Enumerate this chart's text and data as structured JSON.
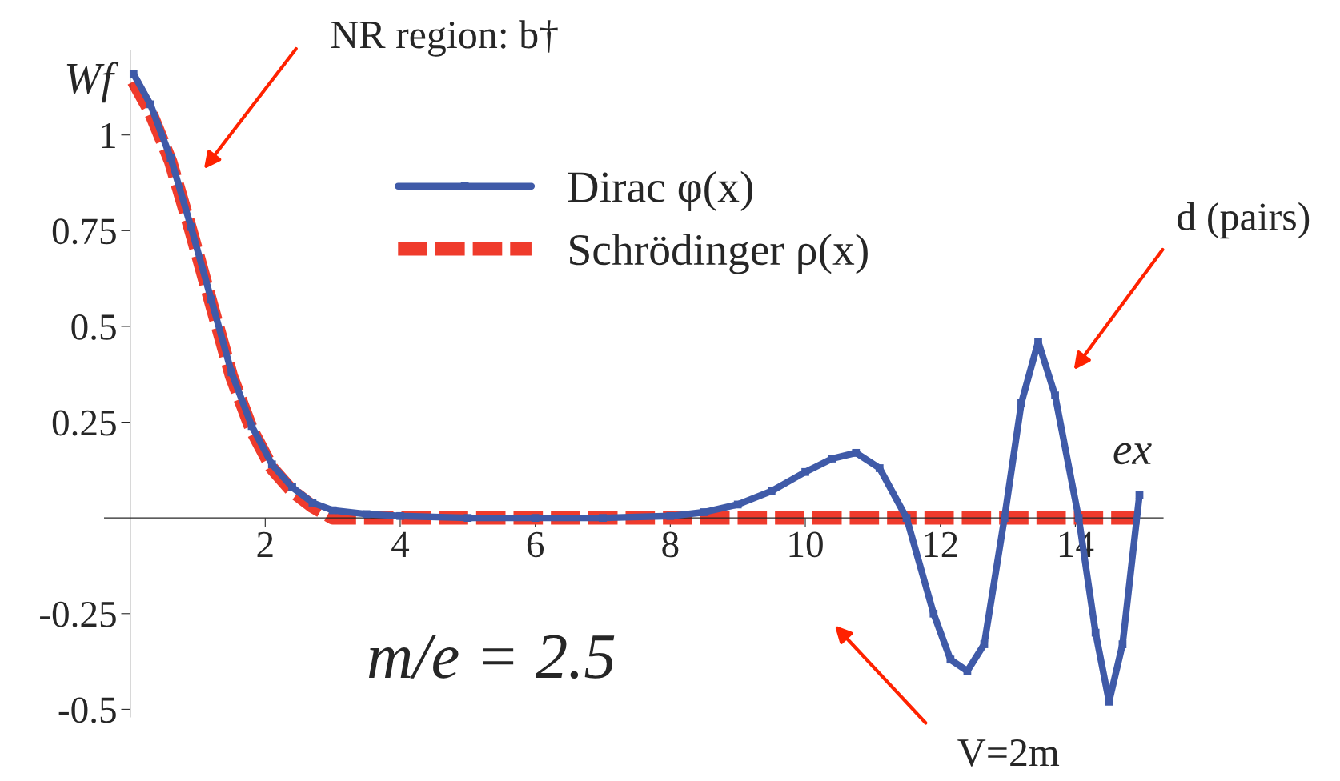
{
  "chart_data": {
    "type": "line",
    "xlabel": "ex",
    "ylabel": "Wf",
    "x": [
      0.05,
      0.3,
      0.6,
      0.9,
      1.2,
      1.5,
      1.8,
      2.1,
      2.4,
      2.7,
      3.0,
      3.5,
      4.0,
      5.0,
      6.0,
      7.0,
      8.0,
      8.5,
      9.0,
      9.5,
      10.0,
      10.4,
      10.75,
      11.1,
      11.5,
      11.9,
      12.15,
      12.4,
      12.65,
      12.95,
      13.2,
      13.45,
      13.7,
      14.05,
      14.3,
      14.5,
      14.7,
      14.95
    ],
    "series": [
      {
        "name": "Dirac φ(x)",
        "color": "#3f5aa8",
        "line_style": "solid",
        "marker": "square",
        "values": [
          1.16,
          1.08,
          0.94,
          0.76,
          0.57,
          0.38,
          0.24,
          0.14,
          0.08,
          0.04,
          0.02,
          0.01,
          0.005,
          0.0,
          0.0,
          0.0,
          0.005,
          0.015,
          0.035,
          0.07,
          0.12,
          0.155,
          0.17,
          0.13,
          0.0,
          -0.25,
          -0.37,
          -0.4,
          -0.33,
          0.0,
          0.3,
          0.46,
          0.32,
          0.0,
          -0.3,
          -0.48,
          -0.33,
          0.06
        ]
      },
      {
        "name": "Schrödinger ρ(x)",
        "color": "#ef3b2c",
        "line_style": "dashed",
        "marker": "none",
        "values": [
          1.14,
          1.06,
          0.93,
          0.75,
          0.56,
          0.37,
          0.23,
          0.13,
          0.07,
          0.03,
          0.0,
          0.0,
          0.0,
          0.0,
          0.0,
          0.0,
          0.0,
          0.0,
          0.0,
          0.0,
          0.0,
          0.0,
          0.0,
          0.0,
          0.0,
          0.0,
          0.0,
          0.0,
          0.0,
          0.0,
          0.0,
          0.0,
          0.0,
          0.0,
          0.0,
          0.0,
          0.0,
          0.0
        ]
      }
    ],
    "xlim": [
      -0.38,
      15.3
    ],
    "ylim": [
      -0.52,
      1.22
    ],
    "xticks": [
      2,
      4,
      6,
      8,
      10,
      12,
      14
    ],
    "yticks": [
      -0.5,
      -0.25,
      0.25,
      0.5,
      0.75,
      1
    ],
    "grid": false,
    "legend": "top",
    "annotations": [
      "NR region: b†",
      "d (pairs)",
      "V=2m",
      "m/e = 2.5"
    ]
  }
}
